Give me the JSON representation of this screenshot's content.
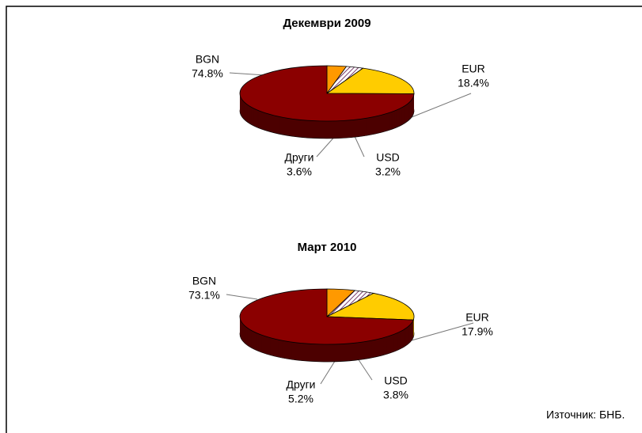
{
  "chart_data": [
    {
      "type": "pie",
      "title": "Декември 2009",
      "categories": [
        "Други",
        "USD",
        "EUR",
        "BGN"
      ],
      "values": [
        3.6,
        3.2,
        18.4,
        74.8
      ],
      "value_labels": [
        "3.6%",
        "3.2%",
        "18.4%",
        "74.8%"
      ],
      "colors": [
        "#ff9900",
        "#c8a8c8",
        "#ffcc00",
        "#8b0000"
      ]
    },
    {
      "type": "pie",
      "title": "Март 2010",
      "categories": [
        "Други",
        "USD",
        "EUR",
        "BGN"
      ],
      "values": [
        5.2,
        3.8,
        17.9,
        73.1
      ],
      "value_labels": [
        "5.2%",
        "3.8%",
        "17.9%",
        "73.1%"
      ],
      "colors": [
        "#ff9900",
        "#c8a8c8",
        "#ffcc00",
        "#8b0000"
      ]
    }
  ],
  "source": "Източник: БНБ."
}
